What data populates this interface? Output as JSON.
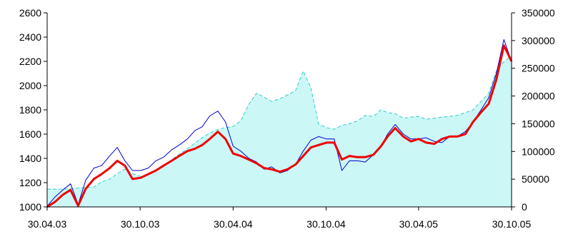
{
  "chart_data": {
    "type": "line",
    "title": "",
    "xlabel": "",
    "ylabel": "",
    "y2label": "",
    "x_ticks": [
      "30.04.03",
      "30.10.03",
      "30.04.04",
      "30.10.04",
      "30.04.05",
      "30.10.05"
    ],
    "x_range": [
      "30.04.03",
      "30.10.05"
    ],
    "y_left": {
      "ticks": [
        "1000",
        "1200",
        "1400",
        "1600",
        "1800",
        "2000",
        "2200",
        "2400",
        "2600"
      ],
      "range": [
        1000,
        2600
      ]
    },
    "y_right": {
      "ticks": [
        "0",
        "50000",
        "100000",
        "150000",
        "200000",
        "250000",
        "300000",
        "350000"
      ],
      "range": [
        0,
        350000
      ]
    },
    "grid": false,
    "legend": "none",
    "colors": {
      "area_fill": "#ccf7f7",
      "area_line": "#33cccc",
      "thin_line": "#0000cc",
      "thick_line": "#ee0000",
      "axis": "#000000"
    },
    "series": [
      {
        "axis": "right",
        "style": "area",
        "x": [
          "30.04.03",
          "15.05.03",
          "31.05.03",
          "15.06.03",
          "30.06.03",
          "15.07.03",
          "31.07.03",
          "15.08.03",
          "31.08.03",
          "15.09.03",
          "30.09.03",
          "15.10.03",
          "31.10.03",
          "15.11.03",
          "30.11.03",
          "15.12.03",
          "31.12.03",
          "15.01.04",
          "31.01.04",
          "15.02.04",
          "29.02.04",
          "15.03.04",
          "31.03.04",
          "15.04.04",
          "30.04.04",
          "15.05.04",
          "31.05.04",
          "15.06.04",
          "30.06.04",
          "15.07.04",
          "31.07.04",
          "15.08.04",
          "31.08.04",
          "15.09.04",
          "30.09.04",
          "15.10.04",
          "31.10.04",
          "15.11.04",
          "30.11.04",
          "15.12.04",
          "31.12.04",
          "15.01.05",
          "31.01.05",
          "15.02.05",
          "28.02.05",
          "15.03.05",
          "31.03.05",
          "15.04.05",
          "30.04.05",
          "15.05.05",
          "31.05.05",
          "15.06.05",
          "30.06.05",
          "15.07.05",
          "31.07.05",
          "15.08.05",
          "31.08.05",
          "15.09.05",
          "30.09.05",
          "15.10.05",
          "31.10.05"
        ],
        "values": [
          32000,
          32000,
          32000,
          33000,
          34000,
          35000,
          36000,
          45000,
          50000,
          60000,
          68000,
          60000,
          55000,
          58000,
          65000,
          75000,
          85000,
          95000,
          105000,
          115000,
          125000,
          133000,
          140000,
          143000,
          145000,
          155000,
          185000,
          205000,
          198000,
          190000,
          195000,
          202000,
          210000,
          245000,
          215000,
          150000,
          143000,
          140000,
          147000,
          150000,
          155000,
          165000,
          163000,
          175000,
          170000,
          168000,
          160000,
          162000,
          163000,
          158000,
          160000,
          162000,
          163000,
          165000,
          170000,
          175000,
          190000,
          205000,
          245000,
          262000,
          272000
        ]
      },
      {
        "axis": "left",
        "style": "thin-line",
        "x": [
          "30.04.03",
          "15.05.03",
          "31.05.03",
          "15.06.03",
          "30.06.03",
          "15.07.03",
          "31.07.03",
          "15.08.03",
          "31.08.03",
          "15.09.03",
          "30.09.03",
          "15.10.03",
          "31.10.03",
          "15.11.03",
          "30.11.03",
          "15.12.03",
          "31.12.03",
          "15.01.04",
          "31.01.04",
          "15.02.04",
          "29.02.04",
          "15.03.04",
          "31.03.04",
          "15.04.04",
          "30.04.04",
          "15.05.04",
          "31.05.04",
          "15.06.04",
          "30.06.04",
          "15.07.04",
          "31.07.04",
          "15.08.04",
          "31.08.04",
          "15.09.04",
          "30.09.04",
          "15.10.04",
          "31.10.04",
          "15.11.04",
          "30.11.04",
          "15.12.04",
          "31.12.04",
          "15.01.05",
          "31.01.05",
          "15.02.05",
          "28.02.05",
          "15.03.05",
          "31.03.05",
          "15.04.05",
          "30.04.05",
          "15.05.05",
          "31.05.05",
          "15.06.05",
          "30.06.05",
          "15.07.05",
          "31.07.05",
          "15.08.05",
          "31.08.05",
          "15.09.05",
          "30.09.05",
          "15.10.05",
          "31.10.05"
        ],
        "values": [
          1005,
          1080,
          1140,
          1190,
          1020,
          1220,
          1320,
          1340,
          1420,
          1490,
          1380,
          1300,
          1300,
          1320,
          1380,
          1410,
          1470,
          1510,
          1560,
          1630,
          1660,
          1750,
          1790,
          1700,
          1500,
          1460,
          1400,
          1370,
          1310,
          1330,
          1280,
          1300,
          1350,
          1460,
          1550,
          1580,
          1560,
          1560,
          1300,
          1380,
          1380,
          1370,
          1430,
          1500,
          1600,
          1680,
          1600,
          1560,
          1560,
          1570,
          1540,
          1530,
          1580,
          1580,
          1620,
          1700,
          1800,
          1900,
          2100,
          2380,
          2200
        ]
      },
      {
        "axis": "left",
        "style": "thick-line",
        "x": [
          "30.04.03",
          "15.05.03",
          "31.05.03",
          "15.06.03",
          "30.06.03",
          "15.07.03",
          "31.07.03",
          "15.08.03",
          "31.08.03",
          "15.09.03",
          "30.09.03",
          "15.10.03",
          "31.10.03",
          "15.11.03",
          "30.11.03",
          "15.12.03",
          "31.12.03",
          "15.01.04",
          "31.01.04",
          "15.02.04",
          "29.02.04",
          "15.03.04",
          "31.03.04",
          "15.04.04",
          "30.04.04",
          "15.05.04",
          "31.05.04",
          "15.06.04",
          "30.06.04",
          "15.07.04",
          "31.07.04",
          "15.08.04",
          "31.08.04",
          "15.09.04",
          "30.09.04",
          "15.10.04",
          "31.10.04",
          "15.11.04",
          "30.11.04",
          "15.12.04",
          "31.12.04",
          "15.01.05",
          "31.01.05",
          "15.02.05",
          "28.02.05",
          "15.03.05",
          "31.03.05",
          "15.04.05",
          "30.04.05",
          "15.05.05",
          "31.05.05",
          "15.06.05",
          "30.06.05",
          "15.07.05",
          "31.07.05",
          "15.08.05",
          "31.08.05",
          "15.09.05",
          "30.09.05",
          "15.10.05",
          "31.10.05"
        ],
        "values": [
          1000,
          1040,
          1100,
          1140,
          1010,
          1150,
          1230,
          1270,
          1320,
          1380,
          1340,
          1230,
          1240,
          1270,
          1300,
          1340,
          1380,
          1420,
          1460,
          1480,
          1510,
          1560,
          1620,
          1560,
          1440,
          1420,
          1390,
          1360,
          1320,
          1310,
          1290,
          1310,
          1350,
          1420,
          1490,
          1510,
          1530,
          1530,
          1390,
          1420,
          1410,
          1410,
          1430,
          1500,
          1580,
          1650,
          1580,
          1540,
          1560,
          1530,
          1520,
          1560,
          1580,
          1580,
          1600,
          1700,
          1780,
          1850,
          2050,
          2330,
          2200
        ]
      }
    ]
  }
}
